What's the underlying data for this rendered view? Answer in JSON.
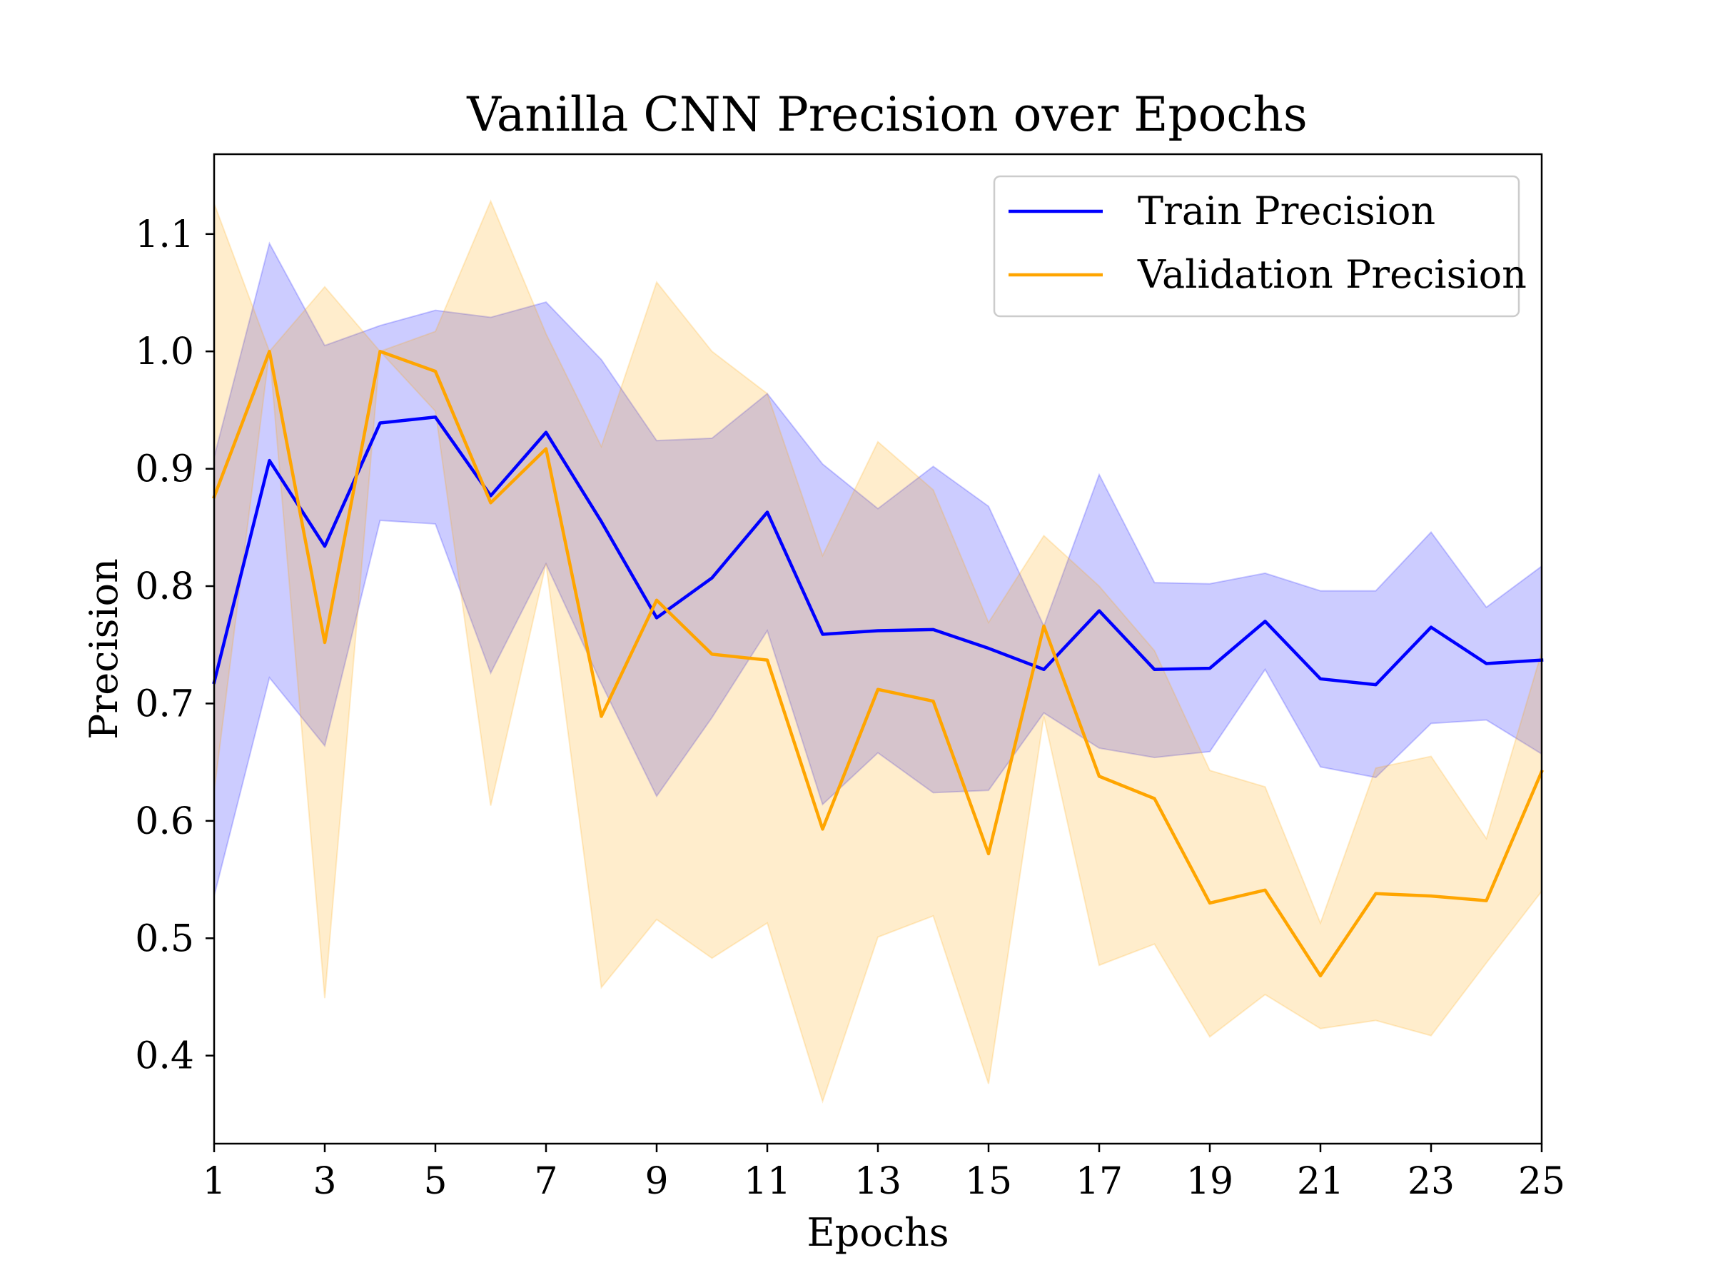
{
  "chart_data": {
    "type": "line",
    "title": "Vanilla CNN Precision over Epochs",
    "xlabel": "Epochs",
    "ylabel": "Precision",
    "xlim": [
      1,
      25
    ],
    "ylim": [
      0.325,
      1.168
    ],
    "xticks": [
      1,
      3,
      5,
      7,
      9,
      11,
      13,
      15,
      17,
      19,
      21,
      23,
      25
    ],
    "xtick_labels": [
      "1",
      "3",
      "5",
      "7",
      "9",
      "11",
      "13",
      "15",
      "17",
      "19",
      "21",
      "23",
      "25"
    ],
    "yticks": [
      0.4,
      0.5,
      0.6,
      0.7,
      0.8,
      0.9,
      1.0,
      1.1
    ],
    "ytick_labels": [
      "0.4",
      "0.5",
      "0.6",
      "0.7",
      "0.8",
      "0.9",
      "1.0",
      "1.1"
    ],
    "grid": false,
    "legend_position": "top-right",
    "x": [
      1,
      2,
      3,
      4,
      5,
      6,
      7,
      8,
      9,
      10,
      11,
      12,
      13,
      14,
      15,
      16,
      17,
      18,
      19,
      20,
      21,
      22,
      23,
      24,
      25
    ],
    "series": [
      {
        "name": "Train Precision",
        "color": "#0000ff",
        "values": [
          0.718,
          0.907,
          0.834,
          0.939,
          0.944,
          0.877,
          0.931,
          0.855,
          0.773,
          0.807,
          0.863,
          0.759,
          0.762,
          0.763,
          0.747,
          0.729,
          0.779,
          0.729,
          0.73,
          0.77,
          0.721,
          0.716,
          0.765,
          0.734,
          0.737
        ],
        "band_upper": [
          0.91,
          1.092,
          1.005,
          1.022,
          1.035,
          1.029,
          1.042,
          0.993,
          0.924,
          0.926,
          0.964,
          0.904,
          0.866,
          0.902,
          0.868,
          0.766,
          0.895,
          0.803,
          0.802,
          0.811,
          0.796,
          0.796,
          0.846,
          0.782,
          0.817
        ],
        "band_lower": [
          0.536,
          0.722,
          0.664,
          0.856,
          0.853,
          0.726,
          0.819,
          0.717,
          0.621,
          0.688,
          0.762,
          0.614,
          0.658,
          0.624,
          0.626,
          0.692,
          0.662,
          0.654,
          0.659,
          0.729,
          0.646,
          0.637,
          0.683,
          0.686,
          0.657
        ]
      },
      {
        "name": "Validation Precision",
        "color": "#ffa500",
        "values": [
          0.876,
          1.0,
          0.752,
          1.0,
          0.983,
          0.871,
          0.917,
          0.689,
          0.788,
          0.742,
          0.737,
          0.593,
          0.712,
          0.702,
          0.572,
          0.766,
          0.638,
          0.619,
          0.53,
          0.541,
          0.468,
          0.538,
          0.536,
          0.532,
          0.642
        ],
        "band_upper": [
          1.126,
          1.0,
          1.055,
          1.0,
          1.017,
          1.128,
          1.015,
          0.919,
          1.059,
          1.0,
          0.964,
          0.826,
          0.923,
          0.882,
          0.769,
          0.843,
          0.8,
          0.745,
          0.643,
          0.629,
          0.513,
          0.645,
          0.655,
          0.585,
          0.744
        ],
        "band_lower": [
          0.625,
          1.0,
          0.449,
          1.0,
          0.949,
          0.613,
          0.819,
          0.458,
          0.516,
          0.483,
          0.513,
          0.361,
          0.501,
          0.519,
          0.376,
          0.689,
          0.477,
          0.495,
          0.416,
          0.452,
          0.423,
          0.43,
          0.417,
          0.479,
          0.54
        ]
      }
    ]
  }
}
